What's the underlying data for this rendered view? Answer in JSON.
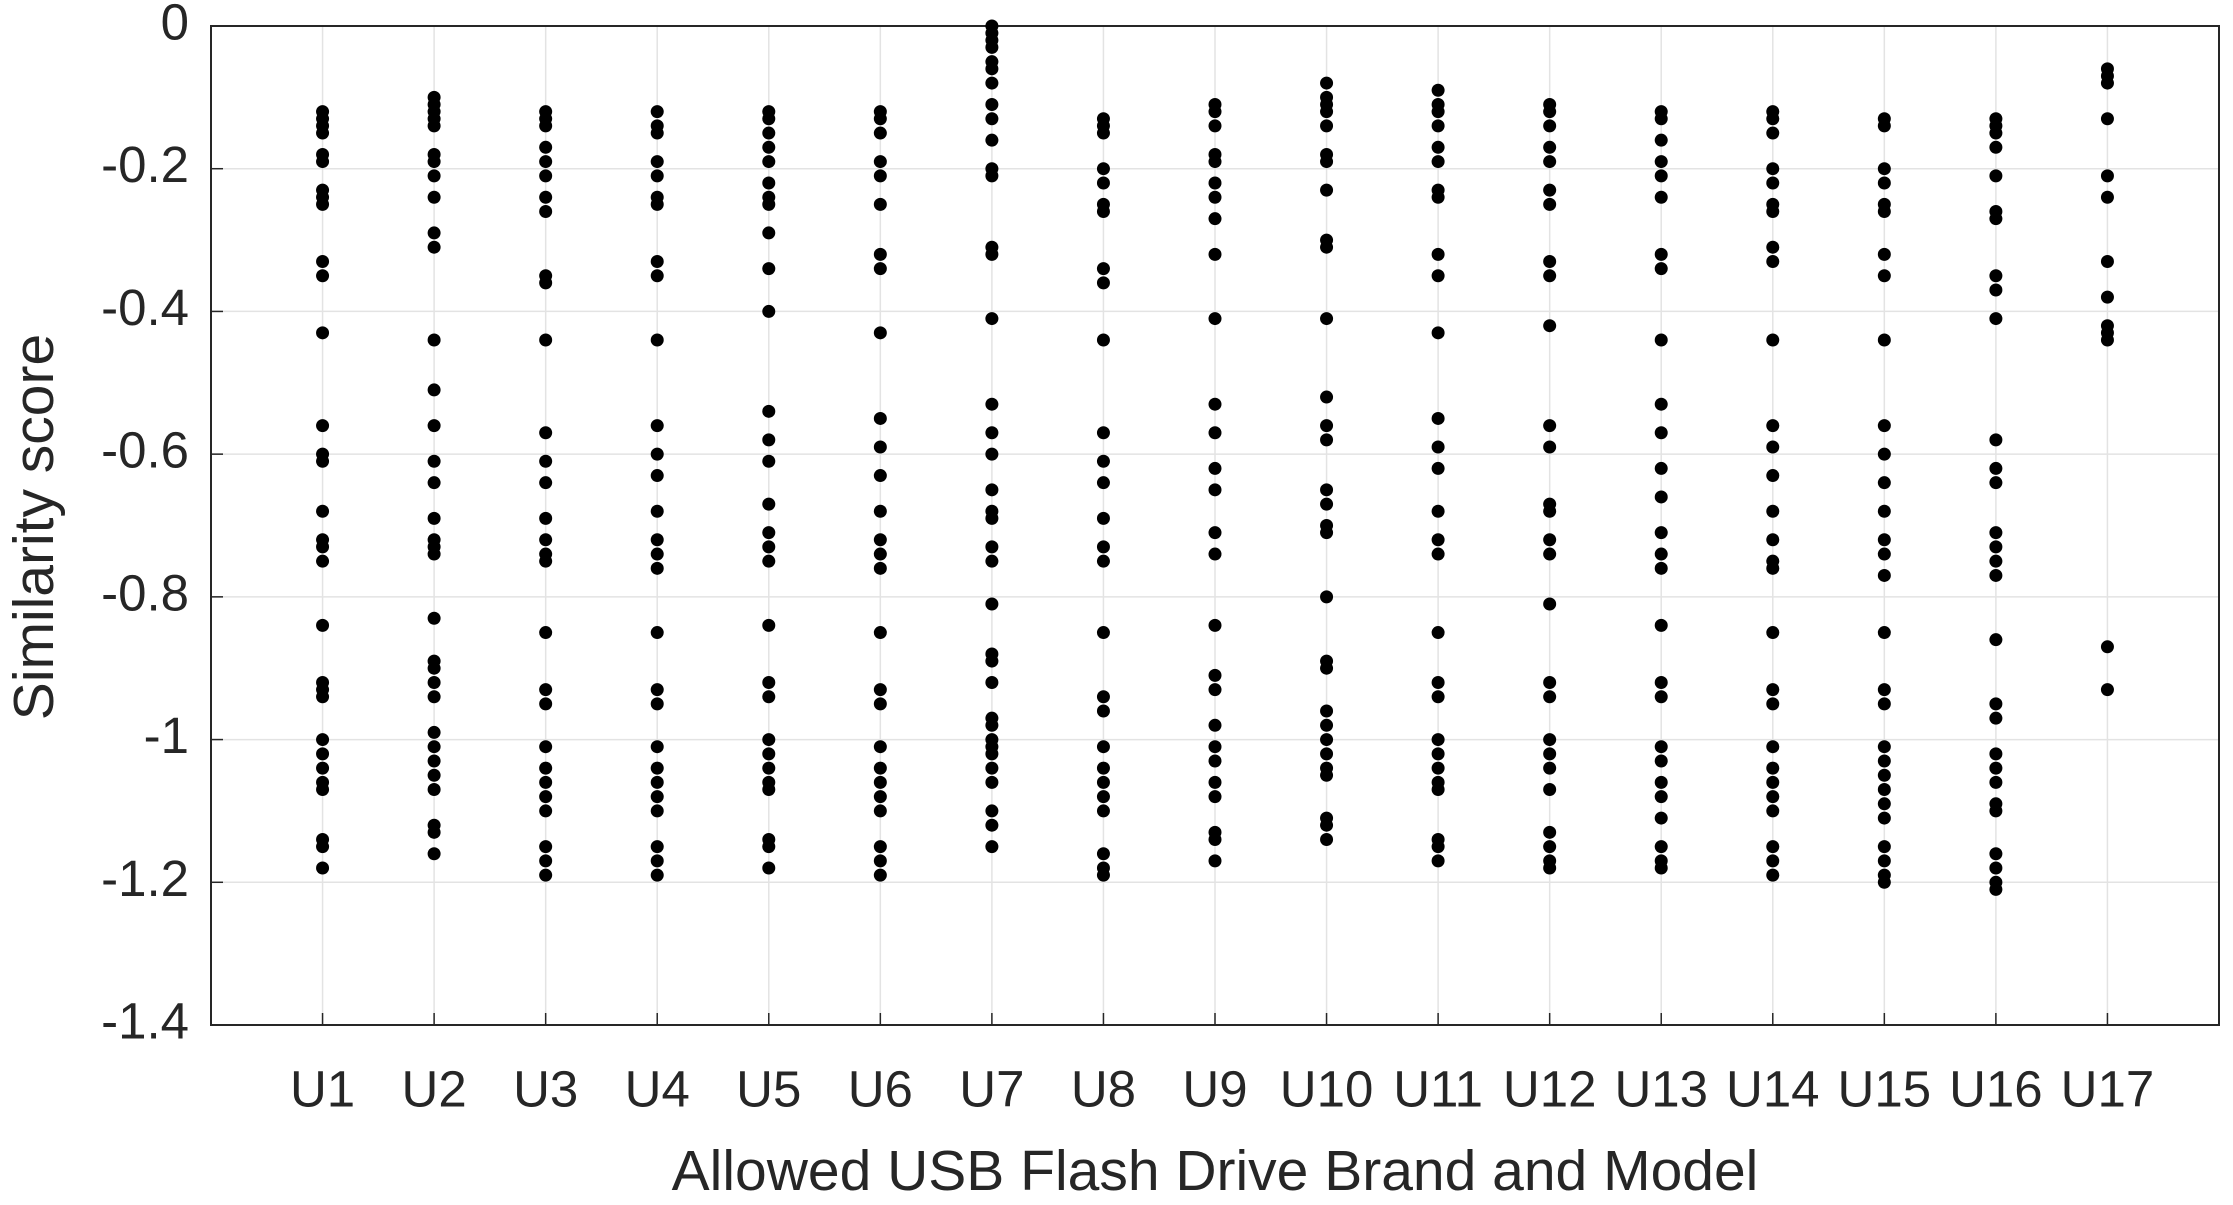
{
  "chart_data": {
    "type": "strip",
    "xlabel": "Allowed USB Flash Drive Brand and Model",
    "ylabel": "Similarity score",
    "color": "#000000",
    "grid": true,
    "ylim": [
      -1.4,
      0
    ],
    "yticks": [
      -1.4,
      -1.2,
      -1,
      -0.8,
      -0.6,
      -0.4,
      -0.2,
      0
    ],
    "categories": [
      "U1",
      "U2",
      "U3",
      "U4",
      "U5",
      "U6",
      "U7",
      "U8",
      "U9",
      "U10",
      "U11",
      "U12",
      "U13",
      "U14",
      "U15",
      "U16",
      "U17"
    ],
    "values": [
      [
        -0.12,
        -0.13,
        -0.14,
        -0.15,
        -0.18,
        -0.19,
        -0.23,
        -0.24,
        -0.25,
        -0.33,
        -0.35,
        -0.43,
        -0.56,
        -0.6,
        -0.61,
        -0.68,
        -0.72,
        -0.73,
        -0.75,
        -0.84,
        -0.92,
        -0.93,
        -0.94,
        -1.0,
        -1.02,
        -1.04,
        -1.06,
        -1.07,
        -1.14,
        -1.15,
        -1.18
      ],
      [
        -0.1,
        -0.11,
        -0.12,
        -0.13,
        -0.14,
        -0.18,
        -0.19,
        -0.21,
        -0.24,
        -0.29,
        -0.31,
        -0.44,
        -0.51,
        -0.56,
        -0.61,
        -0.64,
        -0.69,
        -0.72,
        -0.73,
        -0.74,
        -0.83,
        -0.89,
        -0.9,
        -0.92,
        -0.94,
        -0.99,
        -1.01,
        -1.03,
        -1.05,
        -1.07,
        -1.12,
        -1.13,
        -1.16
      ],
      [
        -0.12,
        -0.13,
        -0.14,
        -0.17,
        -0.19,
        -0.21,
        -0.24,
        -0.26,
        -0.35,
        -0.36,
        -0.44,
        -0.57,
        -0.61,
        -0.64,
        -0.69,
        -0.72,
        -0.74,
        -0.75,
        -0.85,
        -0.93,
        -0.95,
        -1.01,
        -1.04,
        -1.06,
        -1.08,
        -1.1,
        -1.15,
        -1.17,
        -1.19
      ],
      [
        -0.12,
        -0.14,
        -0.15,
        -0.19,
        -0.21,
        -0.24,
        -0.25,
        -0.33,
        -0.35,
        -0.44,
        -0.56,
        -0.6,
        -0.63,
        -0.68,
        -0.72,
        -0.74,
        -0.76,
        -0.85,
        -0.93,
        -0.95,
        -1.01,
        -1.04,
        -1.06,
        -1.08,
        -1.1,
        -1.15,
        -1.17,
        -1.19
      ],
      [
        -0.12,
        -0.13,
        -0.15,
        -0.17,
        -0.19,
        -0.22,
        -0.24,
        -0.25,
        -0.29,
        -0.34,
        -0.4,
        -0.54,
        -0.58,
        -0.61,
        -0.67,
        -0.71,
        -0.73,
        -0.75,
        -0.84,
        -0.92,
        -0.94,
        -1.0,
        -1.02,
        -1.04,
        -1.06,
        -1.07,
        -1.14,
        -1.15,
        -1.18
      ],
      [
        -0.12,
        -0.13,
        -0.15,
        -0.19,
        -0.21,
        -0.25,
        -0.32,
        -0.34,
        -0.43,
        -0.55,
        -0.59,
        -0.63,
        -0.68,
        -0.72,
        -0.74,
        -0.76,
        -0.85,
        -0.93,
        -0.95,
        -1.01,
        -1.04,
        -1.06,
        -1.08,
        -1.1,
        -1.15,
        -1.17,
        -1.19
      ],
      [
        0,
        -0.01,
        -0.02,
        -0.03,
        -0.05,
        -0.06,
        -0.08,
        -0.11,
        -0.13,
        -0.16,
        -0.2,
        -0.21,
        -0.31,
        -0.32,
        -0.41,
        -0.53,
        -0.57,
        -0.6,
        -0.65,
        -0.68,
        -0.69,
        -0.73,
        -0.75,
        -0.81,
        -0.88,
        -0.89,
        -0.92,
        -0.97,
        -0.98,
        -1.0,
        -1.01,
        -1.02,
        -1.04,
        -1.06,
        -1.1,
        -1.12,
        -1.15
      ],
      [
        -0.13,
        -0.14,
        -0.15,
        -0.2,
        -0.22,
        -0.25,
        -0.26,
        -0.34,
        -0.36,
        -0.44,
        -0.57,
        -0.61,
        -0.64,
        -0.69,
        -0.73,
        -0.75,
        -0.85,
        -0.94,
        -0.96,
        -1.01,
        -1.04,
        -1.06,
        -1.08,
        -1.1,
        -1.16,
        -1.18,
        -1.19
      ],
      [
        -0.11,
        -0.12,
        -0.14,
        -0.18,
        -0.19,
        -0.22,
        -0.24,
        -0.27,
        -0.32,
        -0.41,
        -0.53,
        -0.57,
        -0.62,
        -0.65,
        -0.71,
        -0.74,
        -0.84,
        -0.91,
        -0.93,
        -0.98,
        -1.01,
        -1.03,
        -1.06,
        -1.08,
        -1.13,
        -1.14,
        -1.17
      ],
      [
        -0.08,
        -0.1,
        -0.11,
        -0.12,
        -0.14,
        -0.18,
        -0.19,
        -0.23,
        -0.3,
        -0.31,
        -0.41,
        -0.52,
        -0.56,
        -0.58,
        -0.65,
        -0.67,
        -0.7,
        -0.71,
        -0.8,
        -0.89,
        -0.9,
        -0.96,
        -0.98,
        -1.0,
        -1.02,
        -1.04,
        -1.05,
        -1.11,
        -1.12,
        -1.14
      ],
      [
        -0.09,
        -0.11,
        -0.12,
        -0.14,
        -0.17,
        -0.19,
        -0.23,
        -0.24,
        -0.32,
        -0.35,
        -0.43,
        -0.55,
        -0.59,
        -0.62,
        -0.68,
        -0.72,
        -0.74,
        -0.85,
        -0.92,
        -0.94,
        -1.0,
        -1.02,
        -1.04,
        -1.06,
        -1.07,
        -1.14,
        -1.15,
        -1.17
      ],
      [
        -0.11,
        -0.12,
        -0.14,
        -0.17,
        -0.19,
        -0.23,
        -0.25,
        -0.33,
        -0.35,
        -0.42,
        -0.56,
        -0.59,
        -0.67,
        -0.68,
        -0.72,
        -0.74,
        -0.81,
        -0.92,
        -0.94,
        -1.0,
        -1.02,
        -1.04,
        -1.07,
        -1.13,
        -1.15,
        -1.17,
        -1.18
      ],
      [
        -0.12,
        -0.13,
        -0.16,
        -0.19,
        -0.21,
        -0.24,
        -0.32,
        -0.34,
        -0.44,
        -0.53,
        -0.57,
        -0.62,
        -0.66,
        -0.71,
        -0.74,
        -0.76,
        -0.84,
        -0.92,
        -0.94,
        -1.01,
        -1.03,
        -1.06,
        -1.08,
        -1.11,
        -1.15,
        -1.17,
        -1.18
      ],
      [
        -0.12,
        -0.13,
        -0.15,
        -0.2,
        -0.22,
        -0.25,
        -0.26,
        -0.31,
        -0.33,
        -0.44,
        -0.56,
        -0.59,
        -0.63,
        -0.68,
        -0.72,
        -0.75,
        -0.76,
        -0.85,
        -0.93,
        -0.95,
        -1.01,
        -1.04,
        -1.06,
        -1.08,
        -1.1,
        -1.15,
        -1.17,
        -1.19
      ],
      [
        -0.13,
        -0.14,
        -0.2,
        -0.22,
        -0.25,
        -0.26,
        -0.32,
        -0.35,
        -0.44,
        -0.56,
        -0.6,
        -0.64,
        -0.68,
        -0.72,
        -0.74,
        -0.77,
        -0.85,
        -0.93,
        -0.95,
        -1.01,
        -1.03,
        -1.05,
        -1.07,
        -1.09,
        -1.11,
        -1.15,
        -1.17,
        -1.19,
        -1.2
      ],
      [
        -0.13,
        -0.14,
        -0.15,
        -0.17,
        -0.21,
        -0.26,
        -0.27,
        -0.35,
        -0.37,
        -0.41,
        -0.58,
        -0.62,
        -0.64,
        -0.71,
        -0.73,
        -0.75,
        -0.77,
        -0.86,
        -0.95,
        -0.97,
        -1.02,
        -1.04,
        -1.06,
        -1.09,
        -1.1,
        -1.16,
        -1.18,
        -1.2,
        -1.21
      ],
      [
        -0.06,
        -0.07,
        -0.08,
        -0.13,
        -0.21,
        -0.24,
        -0.33,
        -0.38,
        -0.42,
        -0.43,
        -0.44,
        -0.87,
        -0.93
      ]
    ]
  }
}
